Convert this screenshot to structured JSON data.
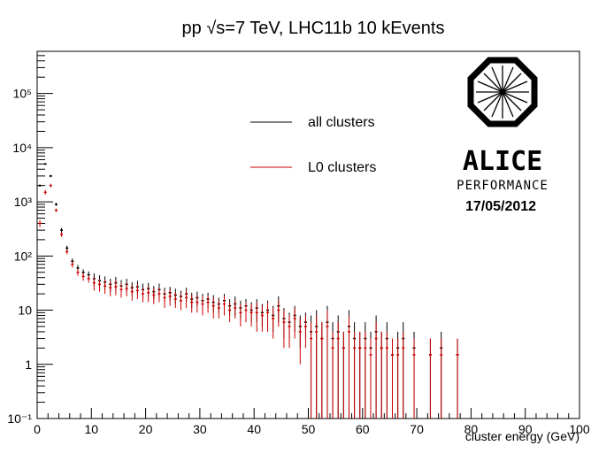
{
  "chart_data": {
    "type": "scatter",
    "title": "pp √s=7 TeV, LHC11b 10 kEvents",
    "x_label": "cluster energy (GeV)",
    "log_y": true,
    "xlim": [
      0,
      100
    ],
    "ylim": [
      0.1,
      600000
    ],
    "xticks": [
      0,
      10,
      20,
      30,
      40,
      50,
      60,
      70,
      80,
      90,
      100
    ],
    "yticks": [
      {
        "value": 0.1,
        "label": "10⁻¹"
      },
      1,
      10,
      {
        "value": 100,
        "label": "10²"
      },
      {
        "value": 1000,
        "label": "10³"
      },
      {
        "value": 10000,
        "label": "10⁴"
      },
      {
        "value": 100000,
        "label": "10⁵"
      }
    ],
    "annotations": [
      "ALICE",
      "PERFORMANCE",
      "17/05/2012"
    ],
    "x": [
      0.5,
      1.5,
      2.5,
      3.5,
      4.5,
      5.5,
      6.5,
      7.5,
      8.5,
      9.5,
      10.5,
      11.5,
      12.5,
      13.5,
      14.5,
      15.5,
      16.5,
      17.5,
      18.5,
      19.5,
      20.5,
      21.5,
      22.5,
      23.5,
      24.5,
      25.5,
      26.5,
      27.5,
      28.5,
      29.5,
      30.5,
      31.5,
      32.5,
      33.5,
      34.5,
      35.5,
      36.5,
      37.5,
      38.5,
      39.5,
      40.5,
      41.5,
      42.5,
      43.5,
      44.5,
      45.5,
      46.5,
      47.5,
      48.5,
      49.5,
      50.5,
      51.5,
      52.5,
      53.5,
      54.5,
      55.5,
      56.5,
      57.5,
      58.5,
      59.5,
      60.5,
      61.5,
      62.5,
      63.5,
      64.5,
      65.5,
      66.5,
      67.5,
      68.5,
      69.5,
      70.5,
      71.5,
      72.5,
      73.5,
      74.5,
      75.5,
      76.5,
      77.5
    ],
    "series": [
      {
        "name": "all clusters",
        "color": "#000000",
        "values": [
          2000,
          5000,
          3000,
          900,
          300,
          140,
          80,
          60,
          50,
          45,
          38,
          35,
          33,
          30,
          32,
          28,
          30,
          26,
          27,
          24,
          25,
          22,
          24,
          20,
          21,
          19,
          18,
          20,
          16,
          17,
          15,
          16,
          14,
          13,
          15,
          12,
          13,
          11,
          12,
          10,
          11,
          9,
          10,
          8,
          12,
          7,
          6,
          8,
          5,
          6,
          4,
          5,
          3,
          6,
          3,
          4,
          2,
          5,
          3,
          2,
          3,
          2,
          4,
          2,
          3,
          1.5,
          2,
          3,
          null,
          2,
          null,
          null,
          1.5,
          null,
          2,
          null,
          null,
          1.5
        ],
        "errors": [
          100,
          200,
          150,
          60,
          30,
          15,
          10,
          8,
          7,
          7,
          10,
          9,
          9,
          8,
          9,
          8,
          8,
          7,
          8,
          7,
          7,
          6,
          7,
          6,
          6,
          6,
          5,
          6,
          5,
          5,
          5,
          5,
          5,
          4,
          5,
          4,
          5,
          4,
          4,
          4,
          5,
          4,
          5,
          4,
          6,
          4,
          3,
          4,
          3,
          3,
          4,
          5,
          3,
          6,
          3,
          4,
          2,
          5,
          3,
          2,
          3,
          2,
          4,
          2,
          3,
          1.5,
          2,
          3,
          null,
          2,
          null,
          null,
          1.5,
          null,
          2,
          null,
          null,
          1.5
        ]
      },
      {
        "name": "L0 clusters",
        "color": "#cc0000",
        "values": [
          400,
          1500,
          2000,
          700,
          250,
          120,
          70,
          50,
          42,
          38,
          32,
          30,
          28,
          26,
          27,
          24,
          25,
          22,
          23,
          20,
          21,
          19,
          20,
          17,
          18,
          16,
          15,
          17,
          14,
          14,
          13,
          14,
          12,
          11,
          13,
          10,
          11,
          9,
          10,
          9,
          9,
          8,
          9,
          7,
          10,
          6,
          5,
          7,
          4,
          5,
          3,
          4,
          3,
          5,
          2,
          3,
          2,
          4,
          2,
          2,
          2,
          1.5,
          3,
          2,
          2,
          1.5,
          1.5,
          2,
          null,
          1.5,
          null,
          null,
          1.5,
          null,
          1.5,
          null,
          null,
          1.5
        ],
        "errors": [
          60,
          150,
          150,
          50,
          25,
          12,
          9,
          7,
          7,
          6,
          9,
          8,
          8,
          8,
          8,
          7,
          7,
          7,
          7,
          6,
          7,
          6,
          6,
          6,
          6,
          5,
          5,
          6,
          5,
          5,
          5,
          5,
          5,
          4,
          5,
          4,
          4,
          4,
          4,
          4,
          5,
          4,
          5,
          4,
          5,
          4,
          3,
          4,
          3,
          3,
          3,
          4,
          3,
          5,
          2,
          3,
          2,
          4,
          2,
          2,
          2,
          1.5,
          3,
          2,
          2,
          1.5,
          1.5,
          2,
          null,
          1.5,
          null,
          null,
          1.5,
          null,
          1.5,
          null,
          null,
          1.5
        ]
      }
    ]
  }
}
